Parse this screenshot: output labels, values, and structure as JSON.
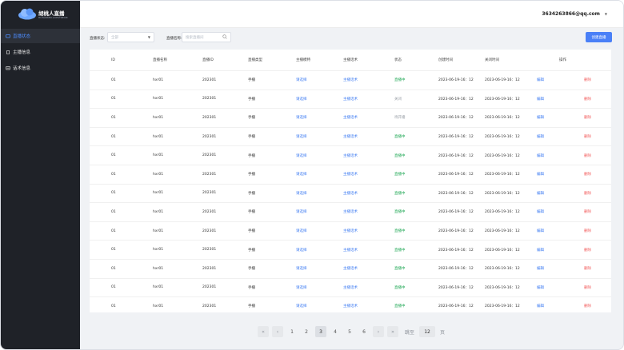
{
  "app": {
    "logo_name": "胡桃人直播",
    "logo_subtitle": "HUTAOREN LIVESTREAM"
  },
  "sidebar": {
    "items": [
      {
        "label": "直播状态",
        "active": true
      },
      {
        "label": "主播信息",
        "active": false
      },
      {
        "label": "话术信息",
        "active": false
      }
    ]
  },
  "header": {
    "user_email": "3634263866@qq.com"
  },
  "filters": {
    "status_label": "直播状态:",
    "status_placeholder": "全部",
    "name_label": "直播名称:",
    "name_placeholder": "搜索直播间",
    "add_button": "创建直播"
  },
  "table": {
    "columns": [
      "ID",
      "直播名称",
      "直播ID",
      "直播类型",
      "主播模特",
      "主播话术",
      "状态",
      "创建时间",
      "关闭时间",
      "操作"
    ],
    "rows": [
      {
        "id": "01",
        "name": "hxr01",
        "live_id": "202301",
        "type": "手播",
        "model": "请选择",
        "script": "主播话术",
        "status": "直播中",
        "status_kind": "green",
        "created": "2023-06-19-16：12",
        "closed": "2023-06-19-16：12",
        "edit": "编辑",
        "delete": "删除"
      },
      {
        "id": "01",
        "name": "hxr01",
        "live_id": "202301",
        "type": "手播",
        "model": "请选择",
        "script": "主播话术",
        "status": "关闭",
        "status_kind": "grey",
        "created": "2023-06-19-16：12",
        "closed": "2023-06-19-16：12",
        "edit": "编辑",
        "delete": "删除"
      },
      {
        "id": "01",
        "name": "hxr01",
        "live_id": "202301",
        "type": "手播",
        "model": "请选择",
        "script": "主播话术",
        "status": "待开播",
        "status_kind": "grey",
        "created": "2023-06-19-16：12",
        "closed": "2023-06-19-16：12",
        "edit": "编辑",
        "delete": "删除"
      },
      {
        "id": "01",
        "name": "hxr01",
        "live_id": "202301",
        "type": "手播",
        "model": "请选择",
        "script": "主播话术",
        "status": "直播中",
        "status_kind": "green",
        "created": "2023-06-19-16：12",
        "closed": "2023-06-19-16：12",
        "edit": "编辑",
        "delete": "删除"
      },
      {
        "id": "01",
        "name": "hxr01",
        "live_id": "202301",
        "type": "手播",
        "model": "请选择",
        "script": "主播话术",
        "status": "直播中",
        "status_kind": "green",
        "created": "2023-06-19-16：12",
        "closed": "2023-06-19-16：12",
        "edit": "编辑",
        "delete": "删除"
      },
      {
        "id": "01",
        "name": "hxr01",
        "live_id": "202301",
        "type": "手播",
        "model": "请选择",
        "script": "主播话术",
        "status": "直播中",
        "status_kind": "green",
        "created": "2023-06-19-16：12",
        "closed": "2023-06-19-16：12",
        "edit": "编辑",
        "delete": "删除"
      },
      {
        "id": "01",
        "name": "hxr01",
        "live_id": "202301",
        "type": "手播",
        "model": "请选择",
        "script": "主播话术",
        "status": "直播中",
        "status_kind": "green",
        "created": "2023-06-19-16：12",
        "closed": "2023-06-19-16：12",
        "edit": "编辑",
        "delete": "删除"
      },
      {
        "id": "01",
        "name": "hxr01",
        "live_id": "202301",
        "type": "手播",
        "model": "请选择",
        "script": "主播话术",
        "status": "直播中",
        "status_kind": "green",
        "created": "2023-06-19-16：12",
        "closed": "2023-06-19-16：12",
        "edit": "编辑",
        "delete": "删除"
      },
      {
        "id": "01",
        "name": "hxr01",
        "live_id": "202301",
        "type": "手播",
        "model": "请选择",
        "script": "主播话术",
        "status": "直播中",
        "status_kind": "green",
        "created": "2023-06-19-16：12",
        "closed": "2023-06-19-16：12",
        "edit": "编辑",
        "delete": "删除"
      },
      {
        "id": "01",
        "name": "hxr01",
        "live_id": "202301",
        "type": "手播",
        "model": "请选择",
        "script": "主播话术",
        "status": "直播中",
        "status_kind": "green",
        "created": "2023-06-19-16：12",
        "closed": "2023-06-19-16：12",
        "edit": "编辑",
        "delete": "删除"
      },
      {
        "id": "01",
        "name": "hxr01",
        "live_id": "202301",
        "type": "手播",
        "model": "请选择",
        "script": "主播话术",
        "status": "直播中",
        "status_kind": "green",
        "created": "2023-06-19-16：12",
        "closed": "2023-06-19-16：12",
        "edit": "编辑",
        "delete": "删除"
      },
      {
        "id": "01",
        "name": "hxr01",
        "live_id": "202301",
        "type": "手播",
        "model": "请选择",
        "script": "主播话术",
        "status": "直播中",
        "status_kind": "green",
        "created": "2023-06-19-16：12",
        "closed": "2023-06-19-16：12",
        "edit": "编辑",
        "delete": "删除"
      },
      {
        "id": "01",
        "name": "hxr01",
        "live_id": "202301",
        "type": "手播",
        "model": "请选择",
        "script": "主播话术",
        "status": "直播中",
        "status_kind": "green",
        "created": "2023-06-19-16：12",
        "closed": "2023-06-19-16：12",
        "edit": "编辑",
        "delete": "删除"
      }
    ]
  },
  "pagination": {
    "first": "«",
    "prev": "‹",
    "pages": [
      "1",
      "2",
      "3",
      "4",
      "5",
      "6"
    ],
    "current": "3",
    "next": "›",
    "last": "»",
    "jump_label": "跳至",
    "jump_value": "12",
    "page_suffix": "页"
  },
  "colors": {
    "sidebar_bg": "#1f2228",
    "accent": "#4a80f7",
    "status_live": "#1fa855",
    "delete": "#f25b5b"
  }
}
